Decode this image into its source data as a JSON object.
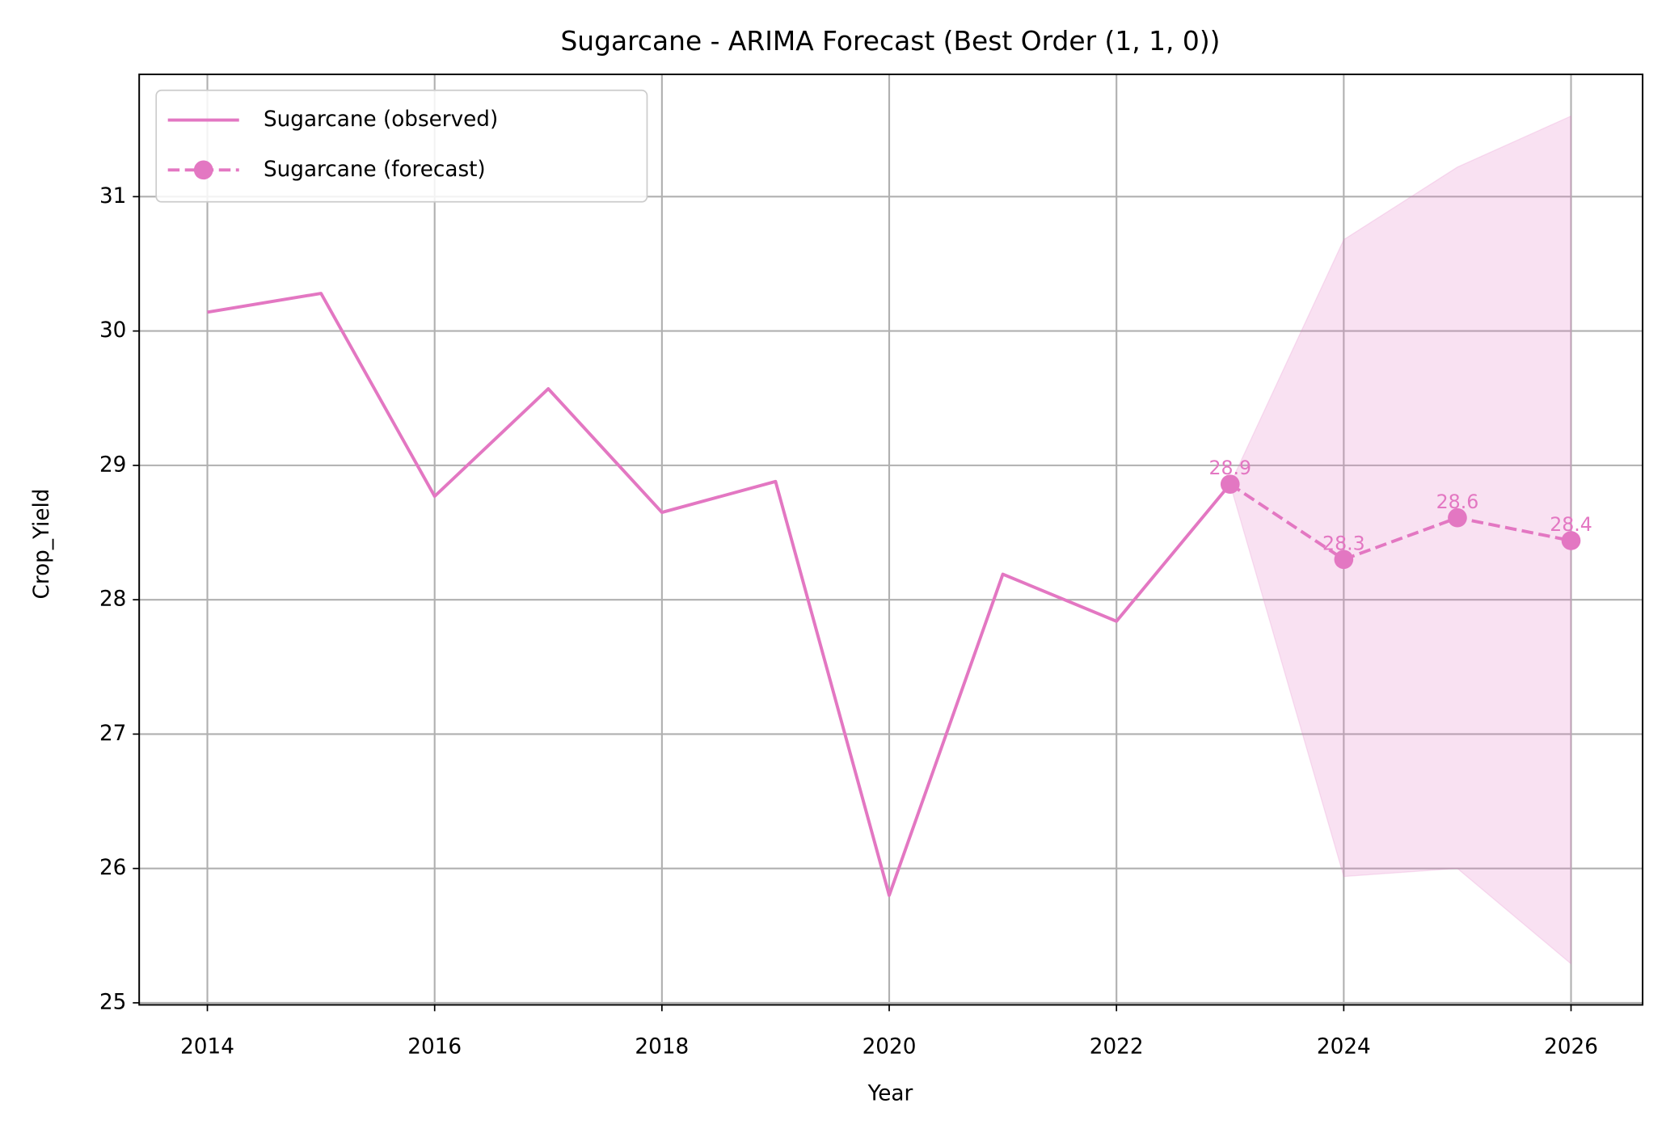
{
  "chart_data": {
    "type": "line",
    "title": "Sugarcane - ARIMA Forecast (Best Order (1, 1, 0))",
    "x_label": "Year",
    "y_label": "Crop_Yield",
    "series": [
      {
        "name": "Sugarcane (observed)",
        "color": "#e377c2",
        "dashed": false,
        "markers": false,
        "x": [
          2014,
          2015,
          2016,
          2017,
          2018,
          2019,
          2020,
          2021,
          2022,
          2023
        ],
        "values": [
          30.14,
          30.28,
          28.77,
          29.57,
          28.65,
          28.88,
          25.8,
          28.19,
          27.84,
          28.86
        ]
      },
      {
        "name": "Sugarcane (forecast)",
        "color": "#e377c2",
        "dashed": true,
        "markers": true,
        "x": [
          2023,
          2024,
          2025,
          2026
        ],
        "values": [
          28.86,
          28.3,
          28.61,
          28.44
        ],
        "value_labels": [
          "28.9",
          "28.3",
          "28.6",
          "28.4"
        ]
      }
    ],
    "band": {
      "color": "#e377c2",
      "x": [
        2023,
        2024,
        2025,
        2026
      ],
      "lower": [
        28.86,
        25.94,
        26.0,
        25.29
      ],
      "upper": [
        28.86,
        30.68,
        31.22,
        31.6
      ]
    },
    "xlim": [
      2013.4,
      2026.63
    ],
    "ylim": [
      24.985,
      31.91
    ],
    "xticks": [
      2014,
      2016,
      2018,
      2020,
      2022,
      2024,
      2026
    ],
    "yticks": [
      25,
      26,
      27,
      28,
      29,
      30,
      31
    ],
    "grid": true,
    "legend": "upper left"
  }
}
